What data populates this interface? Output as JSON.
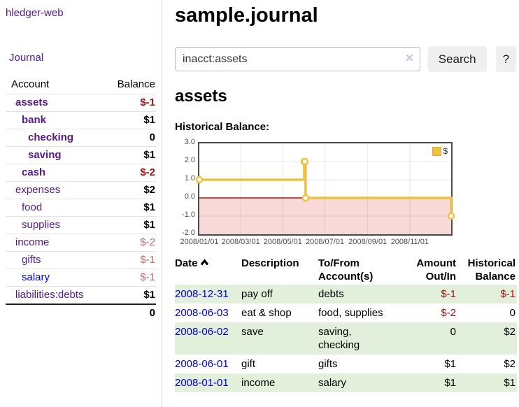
{
  "sidebar": {
    "brand": "hledger-web",
    "journal_label": "Journal",
    "accounts": {
      "header_account": "Account",
      "header_balance": "Balance",
      "rows": [
        {
          "name": "assets",
          "balance": "$-1"
        },
        {
          "name": "bank",
          "balance": "$1"
        },
        {
          "name": "checking",
          "balance": "0"
        },
        {
          "name": "saving",
          "balance": "$1"
        },
        {
          "name": "cash",
          "balance": "$-2"
        },
        {
          "name": "expenses",
          "balance": "$2"
        },
        {
          "name": "food",
          "balance": "$1"
        },
        {
          "name": "supplies",
          "balance": "$1"
        },
        {
          "name": "income",
          "balance": "$-2"
        },
        {
          "name": "gifts",
          "balance": "$-1"
        },
        {
          "name": "salary",
          "balance": "$-1"
        },
        {
          "name": "liabilities:debts",
          "balance": "$1"
        }
      ],
      "total": "0"
    }
  },
  "main": {
    "title": "sample.journal",
    "search": {
      "value": "inacct:assets",
      "button_label": "Search",
      "help_label": "?"
    },
    "register": {
      "heading": "assets",
      "chart_label": "Historical Balance:",
      "table": {
        "headers": [
          "Date",
          "Description",
          "To/From Account(s)",
          "Amount Out/In",
          "Historical Balance"
        ],
        "rows": [
          {
            "date": "2008-12-31",
            "description": "pay off",
            "accounts": "debts",
            "amount": "$-1",
            "balance": "$-1"
          },
          {
            "date": "2008-06-03",
            "description": "eat & shop",
            "accounts": "food, supplies",
            "amount": "$-2",
            "balance": "0"
          },
          {
            "date": "2008-06-02",
            "description": "save",
            "accounts": "saving,\nchecking",
            "amount": "0",
            "balance": "$2"
          },
          {
            "date": "2008-06-01",
            "description": "gift",
            "accounts": "gifts",
            "amount": "$1",
            "balance": "$2"
          },
          {
            "date": "2008-01-01",
            "description": "income",
            "accounts": "salary",
            "amount": "$1",
            "balance": "$1"
          }
        ]
      }
    }
  },
  "icons": {
    "clear_search": "✕",
    "sort": "chevron-up",
    "legend_swatch": "yellow-square"
  },
  "colors": {
    "link_purple": "#551a8b",
    "link_blue": "#0000d6",
    "negative_strong": "#a11212",
    "negative_dim": "#bb6a6a",
    "row_stripe_green": "#e2efda",
    "chart_line_yellow": "#edc240",
    "chart_negative_region": "#f9d8d8",
    "chart_zero_line": "#8f1f1f",
    "chart_border": "#4d4d4d"
  },
  "chart_data": {
    "type": "line",
    "step": true,
    "title": "Historical Balance:",
    "xlabel": "",
    "ylabel": "",
    "xlim": [
      "2008-01-01",
      "2008-12-31"
    ],
    "ylim": [
      -2,
      3
    ],
    "x_ticks": [
      "2008/01/01",
      "2008/03/01",
      "2008/05/01",
      "2008/07/01",
      "2008/09/01",
      "2008/11/01"
    ],
    "y_ticks": [
      "3.0",
      "2.0",
      "1.0",
      "0.0",
      "-1.0",
      "-2.0"
    ],
    "grid": true,
    "legend_position": "top-right",
    "series": [
      {
        "name": "$",
        "color": "#edc240",
        "x": [
          "2008-01-01",
          "2008-06-01",
          "2008-06-02",
          "2008-06-03",
          "2008-12-31"
        ],
        "values": [
          1,
          2,
          2,
          0,
          -1
        ]
      }
    ],
    "negative_region": {
      "from": 0,
      "to": -2,
      "color": "#f9d8d8"
    },
    "zero_line_color": "#8f1f1f"
  }
}
